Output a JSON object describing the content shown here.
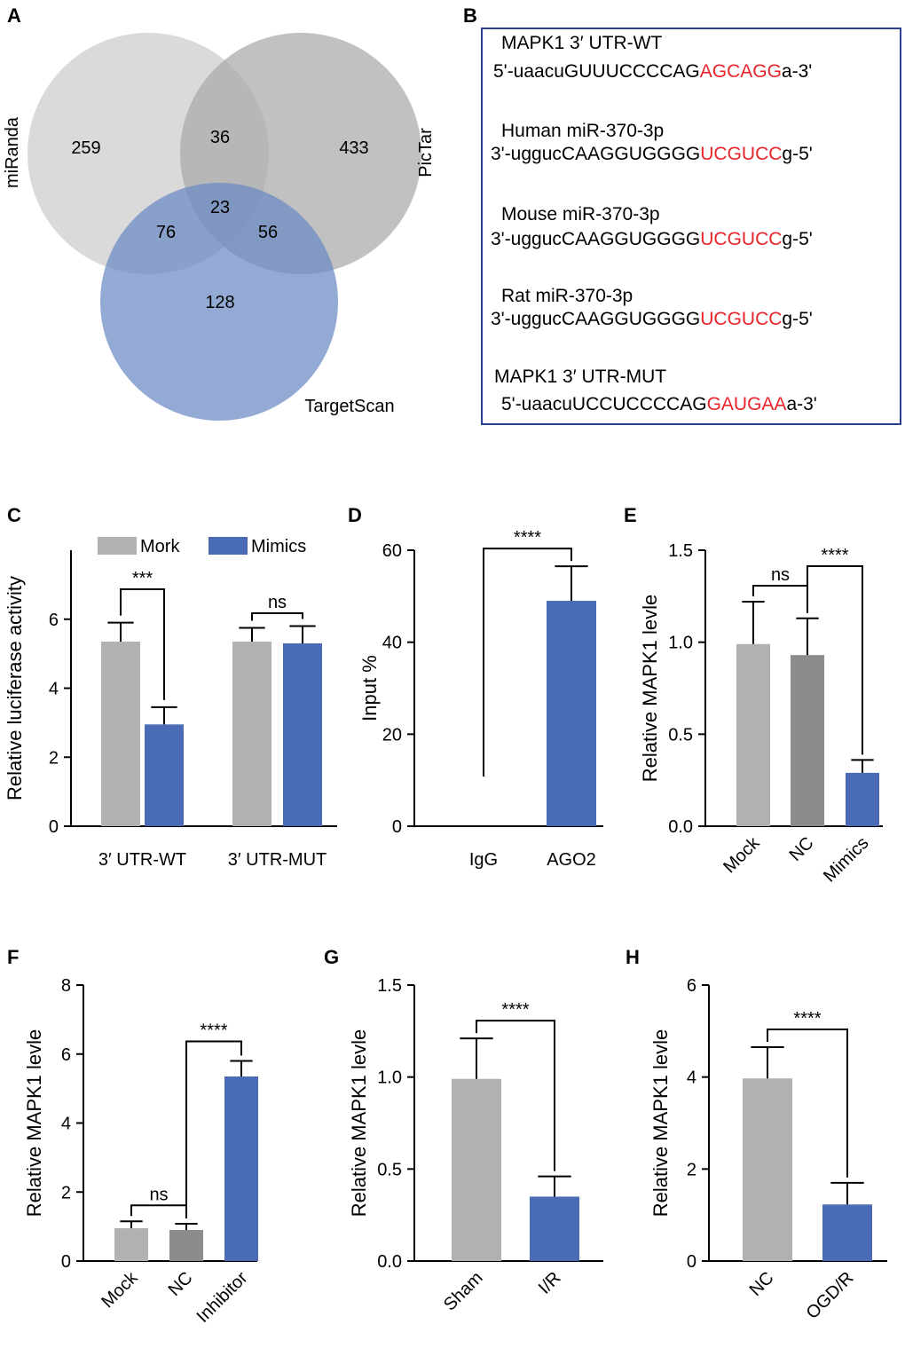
{
  "panels": {
    "A": "A",
    "B": "B",
    "C": "C",
    "D": "D",
    "E": "E",
    "F": "F",
    "G": "G",
    "H": "H"
  },
  "venn": {
    "sets": [
      {
        "name": "miRanda",
        "color": "#d3d3d3"
      },
      {
        "name": "PicTar",
        "color": "#b8b8b8"
      },
      {
        "name": "TargetScan",
        "color": "#7f9ccc"
      }
    ],
    "regions": {
      "miRanda_only": "259",
      "miRanda_PicTar": "36",
      "PicTar_only": "433",
      "all_three": "23",
      "miRanda_TargetScan": "76",
      "PicTar_TargetScan": "56",
      "TargetScan_only": "128"
    }
  },
  "sequences": [
    {
      "label": "MAPK1 3′ UTR-WT",
      "prefix": "5'-uaacuGUUUCCCCAG",
      "site": "AGCAGG",
      "suffix": "a-3'"
    },
    {
      "label": "Human miR-370-3p",
      "prefix": "3'-uggucCAAGGUGGGG",
      "site": "UCGUCC",
      "suffix": "g-5'"
    },
    {
      "label": "Mouse miR-370-3p",
      "prefix": "3'-uggucCAAGGUGGGG",
      "site": "UCGUCC",
      "suffix": "g-5'"
    },
    {
      "label": "Rat miR-370-3p",
      "prefix": "3'-uggucCAAGGUGGGG",
      "site": "UCGUCC",
      "suffix": "g-5'"
    },
    {
      "label": "MAPK1 3′ UTR-MUT",
      "prefix": "5'-uaacuUCCUCCCCAG",
      "site": "GAUGAA",
      "suffix": "a-3'"
    }
  ],
  "colors": {
    "gray": "#b1b1b1",
    "darkgray": "#8c8c8c",
    "blue": "#4a6cb5",
    "red": "#e8242b",
    "box": "#2b3f8f"
  },
  "chart_data": [
    {
      "panel": "C",
      "type": "bar",
      "ylabel": "Relative luciferase activity",
      "ylim": [
        0,
        8
      ],
      "yticks": [
        0,
        2,
        4,
        6
      ],
      "categories": [
        "3′ UTR-WT",
        "3′ UTR-MUT"
      ],
      "series": [
        {
          "name": "Mork",
          "values": [
            5.35,
            5.35
          ],
          "errors": [
            0.55,
            0.4
          ]
        },
        {
          "name": "Mimics",
          "values": [
            2.95,
            5.3
          ],
          "errors": [
            0.5,
            0.5
          ]
        }
      ],
      "legend": "top",
      "significance": [
        "***",
        "ns"
      ]
    },
    {
      "panel": "D",
      "type": "bar",
      "ylabel": "Input %",
      "ylim": [
        0,
        60
      ],
      "yticks": [
        0,
        20,
        40,
        60
      ],
      "categories": [
        "IgG",
        "AGO2"
      ],
      "values": [
        0,
        49
      ],
      "errors": [
        0,
        7.5
      ],
      "significance": [
        "****"
      ]
    },
    {
      "panel": "E",
      "type": "bar",
      "ylabel": "Relative MAPK1 levle",
      "ylim": [
        0,
        1.5
      ],
      "yticks": [
        "0.0",
        "0.5",
        "1.0",
        "1.5"
      ],
      "categories": [
        "Mock",
        "NC",
        "Mimics"
      ],
      "values": [
        0.99,
        0.93,
        0.29
      ],
      "errors": [
        0.23,
        0.2,
        0.07
      ],
      "significance": [
        "ns",
        "****"
      ]
    },
    {
      "panel": "F",
      "type": "bar",
      "ylabel": "Relative MAPK1 levle",
      "ylim": [
        0,
        8
      ],
      "yticks": [
        0,
        2,
        4,
        6,
        8
      ],
      "categories": [
        "Mock",
        "NC",
        "Inhibitor"
      ],
      "values": [
        0.95,
        0.9,
        5.35
      ],
      "errors": [
        0.2,
        0.18,
        0.45
      ],
      "significance": [
        "ns",
        "****"
      ]
    },
    {
      "panel": "G",
      "type": "bar",
      "ylabel": "Relative MAPK1 levle",
      "ylim": [
        0,
        1.5
      ],
      "yticks": [
        "0.0",
        "0.5",
        "1.0",
        "1.5"
      ],
      "categories": [
        "Sham",
        "I/R"
      ],
      "values": [
        0.99,
        0.35
      ],
      "errors": [
        0.22,
        0.11
      ],
      "significance": [
        "****"
      ]
    },
    {
      "panel": "H",
      "type": "bar",
      "ylabel": "Relative MAPK1 levle",
      "ylim": [
        0,
        6
      ],
      "yticks": [
        0,
        2,
        4,
        6
      ],
      "categories": [
        "NC",
        "OGD/R"
      ],
      "values": [
        3.97,
        1.23
      ],
      "errors": [
        0.68,
        0.47
      ],
      "significance": [
        "****"
      ]
    }
  ]
}
